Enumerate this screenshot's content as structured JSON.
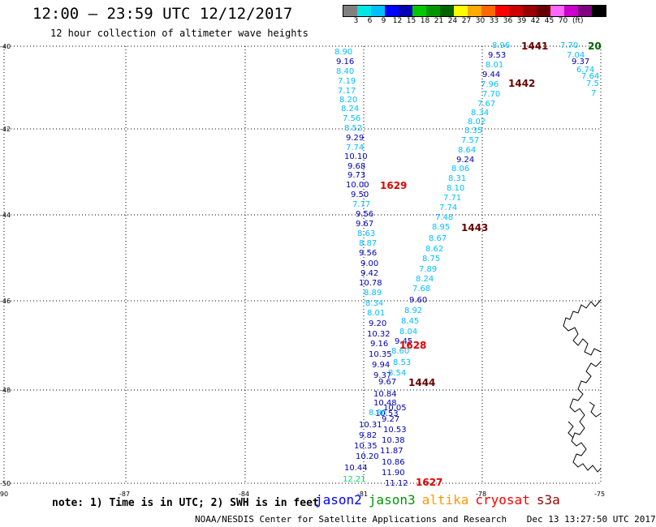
{
  "header": {
    "title": "12:00 – 23:59 UTC 12/12/2017",
    "subtitle": "12 hour collection of altimeter wave heights"
  },
  "legend": {
    "colors": [
      "#808080",
      "#00e6e6",
      "#00bfff",
      "#0000ff",
      "#0000b4",
      "#00c800",
      "#009600",
      "#006400",
      "#ffff00",
      "#ffaa00",
      "#ff6600",
      "#ff0000",
      "#cc0000",
      "#990000",
      "#660000",
      "#ff66ff",
      "#cc00cc",
      "#800080",
      "#000000"
    ],
    "labels": [
      "3",
      "6",
      "9",
      "12",
      "15",
      "18",
      "21",
      "24",
      "27",
      "30",
      "33",
      "36",
      "39",
      "42",
      "45",
      "70"
    ],
    "unit": "(ft)"
  },
  "axes": {
    "lat_labels": [
      "-40",
      "-42",
      "-44",
      "-46",
      "-48",
      "-50"
    ],
    "lon_labels": [
      "-90",
      "-87",
      "-84",
      "-81",
      "-78",
      "-75"
    ]
  },
  "tracks": {
    "track_a": [
      "8.90",
      "9.16",
      "8.40",
      "7.19",
      "7.17",
      "8.20",
      "8.24",
      "7.56",
      "8.52",
      "9.29",
      "7.74",
      "10.10",
      "9.68",
      "9.73",
      "10.00",
      "9.50",
      "7.77",
      "9.56",
      "9.67",
      "8.63",
      "8.87",
      "9.56",
      "9.00",
      "9.42",
      "10.78",
      "8.89",
      "8.34",
      "8.01",
      "9.20",
      "10.32",
      "9.16",
      "10.35",
      "9.94",
      "9.37",
      "9.67",
      "10.84",
      "10.48",
      "10.53",
      "8.80",
      "10.31",
      "9.82",
      "10.35",
      "10.20",
      "10.44",
      "12.21"
    ],
    "track_b": [
      "8.96",
      "9.53",
      "8.01",
      "9.44",
      "7.96",
      "7.70",
      "7.67",
      "8.34",
      "8.02",
      "8.35",
      "7.57",
      "8.64",
      "9.24",
      "8.06",
      "8.31",
      "8.10",
      "7.71",
      "7.74",
      "7.48",
      "8.95",
      "8.67",
      "8.62",
      "8.75",
      "7.89",
      "8.24",
      "7.68",
      "9.60",
      "8.92",
      "8.45",
      "8.04",
      "9.45",
      "8.60",
      "8.53",
      "8.54",
      "10.05",
      "9.27",
      "10.53",
      "10.38",
      "11.87",
      "10.86",
      "11.90",
      "11.12"
    ],
    "track_c": [
      "7.70",
      "7.04",
      "9.37",
      "6.74",
      "7.64",
      "7.5",
      "7"
    ]
  },
  "time_labels": [
    "1441",
    "1442",
    "1443",
    "1444",
    "1627",
    "1628",
    "1629",
    "20"
  ],
  "note": "note: 1) Time is in UTC; 2) SWH is in feet",
  "satellites": [
    {
      "name": "jason2",
      "color": "#0000ff"
    },
    {
      "name": "jason3",
      "color": "#009600"
    },
    {
      "name": "altika",
      "color": "#ff9900"
    },
    {
      "name": "cryosat",
      "color": "#ff0000"
    },
    {
      "name": "s3a",
      "color": "#990000"
    }
  ],
  "footer": {
    "credit": "NOAA/NESDIS Center for Satellite Applications and Research",
    "timestamp": "Dec 13 13:27:50 UTC 2017"
  }
}
